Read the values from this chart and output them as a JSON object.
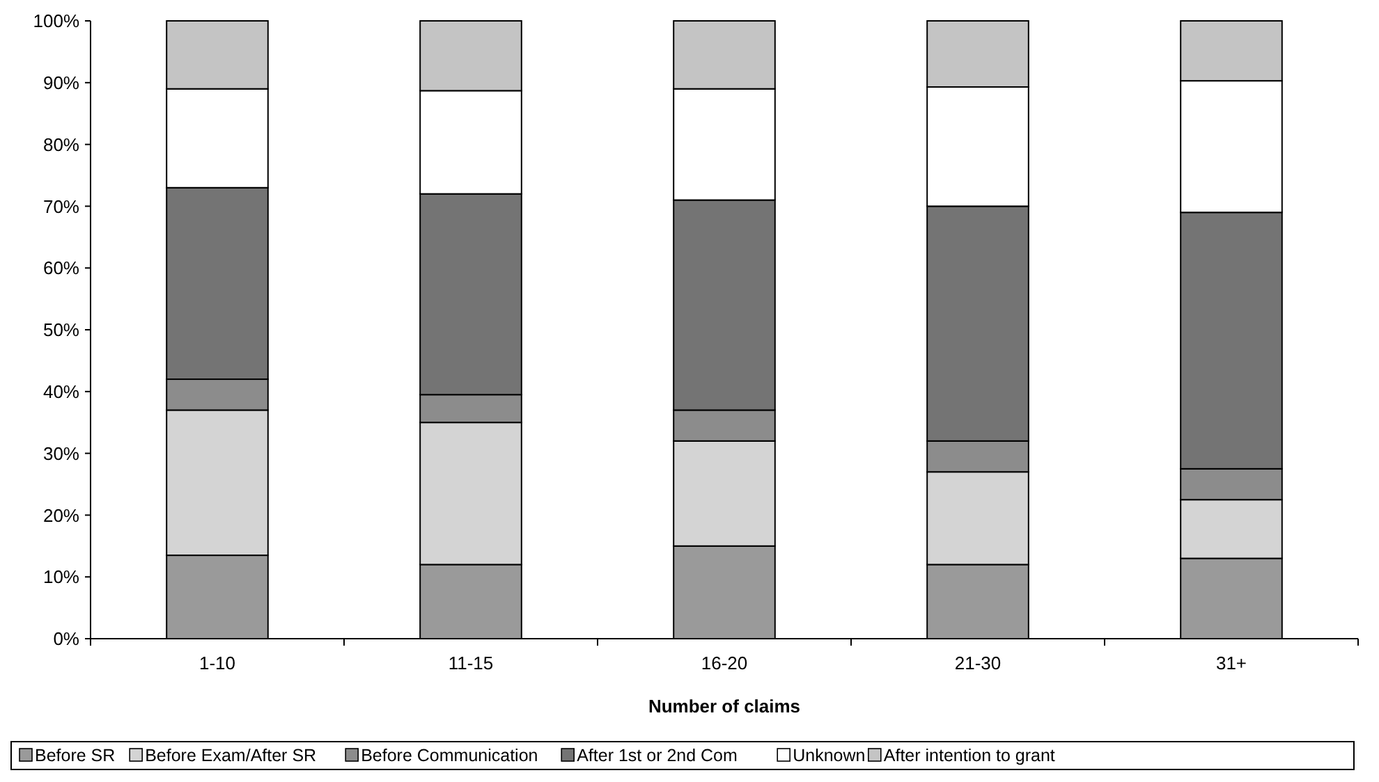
{
  "chart_data": {
    "type": "bar",
    "stacked": true,
    "xlabel": "Number of claims",
    "categories": [
      "1-10",
      "11-15",
      "16-20",
      "21-30",
      "31+"
    ],
    "series": [
      {
        "name": "Before SR",
        "color": "#9a9a9a",
        "values": [
          13.5,
          12,
          15,
          12,
          13
        ]
      },
      {
        "name": "Before Exam/After SR",
        "color": "#d4d4d4",
        "values": [
          23.5,
          23,
          17,
          15,
          9.5
        ]
      },
      {
        "name": "Before Communication",
        "color": "#8c8c8c",
        "values": [
          5,
          4.5,
          5,
          5,
          5
        ]
      },
      {
        "name": "After 1st or 2nd Com",
        "color": "#747474",
        "values": [
          31,
          32.5,
          34,
          38,
          41.5
        ]
      },
      {
        "name": "Unknown",
        "color": "#ffffff",
        "values": [
          16,
          16.7,
          18,
          19.3,
          21.3
        ]
      },
      {
        "name": "After intention to grant",
        "color": "#c4c4c4",
        "values": [
          11,
          11.3,
          11,
          10.7,
          9.7
        ]
      }
    ],
    "ylim": [
      0,
      100
    ],
    "yticks": [
      {
        "value": 0,
        "label": "0%"
      },
      {
        "value": 10,
        "label": "10%"
      },
      {
        "value": 20,
        "label": "20%"
      },
      {
        "value": 30,
        "label": "30%"
      },
      {
        "value": 40,
        "label": "40%"
      },
      {
        "value": 50,
        "label": "50%"
      },
      {
        "value": 60,
        "label": "60%"
      },
      {
        "value": 70,
        "label": "70%"
      },
      {
        "value": 80,
        "label": "80%"
      },
      {
        "value": 90,
        "label": "90%"
      },
      {
        "value": 100,
        "label": "100%"
      }
    ],
    "grid": false,
    "legend": "bottom"
  }
}
